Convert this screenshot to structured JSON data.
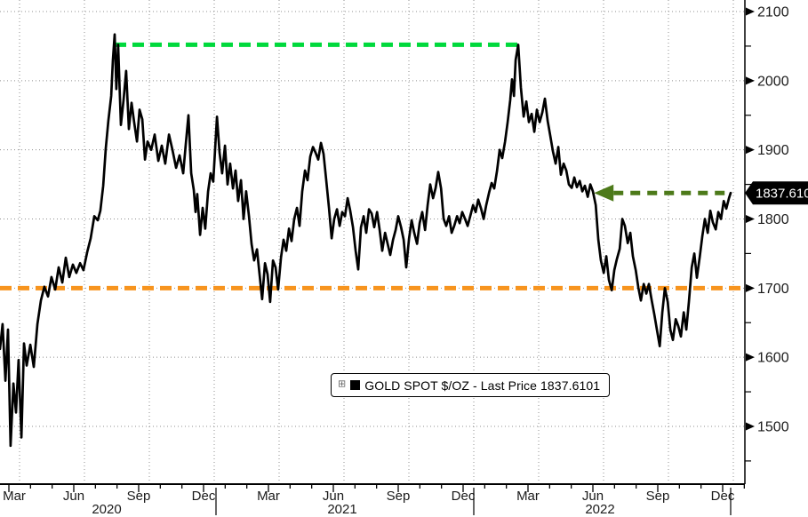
{
  "chart_data": {
    "type": "line",
    "title": "GOLD SPOT $/OZ",
    "time_range": "Feb 2020 - Dec 2022",
    "legend": {
      "expand_icon": "plus-box-icon",
      "expand_glyph": "⊞",
      "marker_color": "#000000",
      "label": "GOLD SPOT $/OZ - Last Price 1837.6101"
    },
    "last_price": 1837.6101,
    "last_price_label": "1837.6101",
    "x_axis": {
      "quarter_tick_labels": [
        "Mar",
        "Jun",
        "Sep",
        "Dec",
        "Mar",
        "Jun",
        "Sep",
        "Dec",
        "Mar",
        "Jun",
        "Sep",
        "Dec"
      ],
      "year_labels": [
        "2020",
        "2021",
        "2022"
      ],
      "month_index_start": 1.59,
      "month_index_end": 35.37
    },
    "y_axis": {
      "side": "right",
      "major_ticks": [
        1500,
        1600,
        1700,
        1800,
        1900,
        2000,
        2100
      ],
      "minor_ticks": [
        1450,
        1550,
        1650,
        1750,
        1850,
        1950,
        2050
      ],
      "visible_value_range": [
        1416,
        2117
      ]
    },
    "grid": true,
    "annotations": [
      {
        "id": "record-high-resistance",
        "type": "hsegment",
        "value": 2052,
        "m_from": 6.89,
        "m_to": 25.65,
        "color": "#00D93C",
        "dash": true
      },
      {
        "id": "support-1700",
        "type": "hline",
        "value": 1700,
        "color": "#F7941E",
        "dash": true
      },
      {
        "id": "last-price-arrow",
        "type": "arrow-left",
        "value": 1837.61,
        "m_tip": 29.05,
        "m_from": 35.38,
        "color": "#4D7A1A",
        "dash": true
      }
    ],
    "series": [
      {
        "name": "GOLD SPOT $/OZ - Last Price",
        "color": "#000000",
        "points": [
          [
            1.59,
            1612
          ],
          [
            1.71,
            1648
          ],
          [
            1.84,
            1566
          ],
          [
            1.96,
            1640
          ],
          [
            2.08,
            1472
          ],
          [
            2.21,
            1562
          ],
          [
            2.33,
            1520
          ],
          [
            2.45,
            1596
          ],
          [
            2.58,
            1484
          ],
          [
            2.7,
            1620
          ],
          [
            2.82,
            1588
          ],
          [
            2.99,
            1618
          ],
          [
            3.15,
            1586
          ],
          [
            3.32,
            1648
          ],
          [
            3.48,
            1682
          ],
          [
            3.64,
            1702
          ],
          [
            3.81,
            1688
          ],
          [
            3.97,
            1716
          ],
          [
            4.14,
            1698
          ],
          [
            4.3,
            1730
          ],
          [
            4.47,
            1708
          ],
          [
            4.63,
            1744
          ],
          [
            4.79,
            1716
          ],
          [
            4.96,
            1734
          ],
          [
            5.12,
            1722
          ],
          [
            5.29,
            1736
          ],
          [
            5.45,
            1726
          ],
          [
            5.62,
            1752
          ],
          [
            5.78,
            1772
          ],
          [
            5.95,
            1804
          ],
          [
            6.11,
            1798
          ],
          [
            6.23,
            1812
          ],
          [
            6.36,
            1848
          ],
          [
            6.48,
            1902
          ],
          [
            6.6,
            1942
          ],
          [
            6.73,
            1978
          ],
          [
            6.81,
            2030
          ],
          [
            6.89,
            2067
          ],
          [
            6.97,
            1988
          ],
          [
            7.05,
            2052
          ],
          [
            7.18,
            1936
          ],
          [
            7.3,
            1972
          ],
          [
            7.42,
            2014
          ],
          [
            7.55,
            1930
          ],
          [
            7.67,
            1968
          ],
          [
            7.79,
            1940
          ],
          [
            7.92,
            1912
          ],
          [
            8.04,
            1958
          ],
          [
            8.17,
            1944
          ],
          [
            8.29,
            1886
          ],
          [
            8.41,
            1912
          ],
          [
            8.58,
            1900
          ],
          [
            8.74,
            1922
          ],
          [
            8.91,
            1884
          ],
          [
            9.07,
            1906
          ],
          [
            9.23,
            1880
          ],
          [
            9.4,
            1922
          ],
          [
            9.56,
            1900
          ],
          [
            9.73,
            1874
          ],
          [
            9.89,
            1892
          ],
          [
            10.06,
            1866
          ],
          [
            10.18,
            1908
          ],
          [
            10.3,
            1950
          ],
          [
            10.43,
            1866
          ],
          [
            10.55,
            1842
          ],
          [
            10.63,
            1810
          ],
          [
            10.71,
            1836
          ],
          [
            10.84,
            1777
          ],
          [
            10.96,
            1816
          ],
          [
            11.08,
            1786
          ],
          [
            11.21,
            1840
          ],
          [
            11.33,
            1866
          ],
          [
            11.45,
            1854
          ],
          [
            11.62,
            1948
          ],
          [
            11.74,
            1896
          ],
          [
            11.86,
            1866
          ],
          [
            11.99,
            1906
          ],
          [
            12.11,
            1850
          ],
          [
            12.23,
            1880
          ],
          [
            12.36,
            1844
          ],
          [
            12.48,
            1870
          ],
          [
            12.6,
            1826
          ],
          [
            12.73,
            1856
          ],
          [
            12.85,
            1800
          ],
          [
            12.97,
            1840
          ],
          [
            13.1,
            1804
          ],
          [
            13.22,
            1764
          ],
          [
            13.34,
            1740
          ],
          [
            13.47,
            1756
          ],
          [
            13.59,
            1720
          ],
          [
            13.71,
            1684
          ],
          [
            13.84,
            1736
          ],
          [
            13.96,
            1720
          ],
          [
            14.08,
            1680
          ],
          [
            14.21,
            1740
          ],
          [
            14.33,
            1730
          ],
          [
            14.45,
            1698
          ],
          [
            14.58,
            1744
          ],
          [
            14.7,
            1770
          ],
          [
            14.82,
            1754
          ],
          [
            14.95,
            1786
          ],
          [
            15.07,
            1768
          ],
          [
            15.19,
            1800
          ],
          [
            15.32,
            1816
          ],
          [
            15.44,
            1790
          ],
          [
            15.56,
            1840
          ],
          [
            15.69,
            1870
          ],
          [
            15.81,
            1856
          ],
          [
            15.93,
            1890
          ],
          [
            16.06,
            1904
          ],
          [
            16.18,
            1896
          ],
          [
            16.3,
            1886
          ],
          [
            16.43,
            1910
          ],
          [
            16.55,
            1894
          ],
          [
            16.67,
            1856
          ],
          [
            16.8,
            1816
          ],
          [
            16.92,
            1772
          ],
          [
            17.04,
            1800
          ],
          [
            17.17,
            1814
          ],
          [
            17.29,
            1790
          ],
          [
            17.41,
            1810
          ],
          [
            17.54,
            1804
          ],
          [
            17.66,
            1830
          ],
          [
            17.78,
            1812
          ],
          [
            17.91,
            1788
          ],
          [
            18.03,
            1754
          ],
          [
            18.15,
            1727
          ],
          [
            18.28,
            1788
          ],
          [
            18.4,
            1804
          ],
          [
            18.52,
            1780
          ],
          [
            18.65,
            1814
          ],
          [
            18.77,
            1808
          ],
          [
            18.89,
            1788
          ],
          [
            19.02,
            1810
          ],
          [
            19.14,
            1784
          ],
          [
            19.26,
            1754
          ],
          [
            19.39,
            1780
          ],
          [
            19.51,
            1764
          ],
          [
            19.63,
            1748
          ],
          [
            19.76,
            1770
          ],
          [
            19.88,
            1784
          ],
          [
            20.0,
            1804
          ],
          [
            20.13,
            1788
          ],
          [
            20.25,
            1770
          ],
          [
            20.37,
            1730
          ],
          [
            20.5,
            1772
          ],
          [
            20.62,
            1798
          ],
          [
            20.74,
            1780
          ],
          [
            20.87,
            1764
          ],
          [
            20.99,
            1794
          ],
          [
            21.11,
            1810
          ],
          [
            21.24,
            1784
          ],
          [
            21.36,
            1820
          ],
          [
            21.48,
            1850
          ],
          [
            21.61,
            1830
          ],
          [
            21.73,
            1845
          ],
          [
            21.85,
            1868
          ],
          [
            21.98,
            1844
          ],
          [
            22.1,
            1800
          ],
          [
            22.22,
            1790
          ],
          [
            22.35,
            1804
          ],
          [
            22.47,
            1780
          ],
          [
            22.59,
            1790
          ],
          [
            22.72,
            1804
          ],
          [
            22.84,
            1794
          ],
          [
            22.96,
            1810
          ],
          [
            23.09,
            1800
          ],
          [
            23.21,
            1790
          ],
          [
            23.33,
            1804
          ],
          [
            23.46,
            1820
          ],
          [
            23.58,
            1810
          ],
          [
            23.7,
            1828
          ],
          [
            23.83,
            1815
          ],
          [
            23.95,
            1800
          ],
          [
            24.07,
            1820
          ],
          [
            24.2,
            1838
          ],
          [
            24.32,
            1852
          ],
          [
            24.44,
            1844
          ],
          [
            24.57,
            1870
          ],
          [
            24.69,
            1900
          ],
          [
            24.81,
            1888
          ],
          [
            24.94,
            1912
          ],
          [
            25.06,
            1940
          ],
          [
            25.18,
            1972
          ],
          [
            25.26,
            2002
          ],
          [
            25.35,
            1978
          ],
          [
            25.43,
            2030
          ],
          [
            25.55,
            2052
          ],
          [
            25.67,
            1990
          ],
          [
            25.8,
            1948
          ],
          [
            25.92,
            1970
          ],
          [
            26.04,
            1940
          ],
          [
            26.17,
            1952
          ],
          [
            26.29,
            1926
          ],
          [
            26.41,
            1958
          ],
          [
            26.54,
            1940
          ],
          [
            26.66,
            1954
          ],
          [
            26.78,
            1974
          ],
          [
            26.91,
            1942
          ],
          [
            27.03,
            1920
          ],
          [
            27.15,
            1898
          ],
          [
            27.28,
            1880
          ],
          [
            27.4,
            1904
          ],
          [
            27.52,
            1864
          ],
          [
            27.65,
            1880
          ],
          [
            27.77,
            1870
          ],
          [
            27.89,
            1850
          ],
          [
            28.02,
            1845
          ],
          [
            28.14,
            1860
          ],
          [
            28.26,
            1846
          ],
          [
            28.39,
            1855
          ],
          [
            28.51,
            1840
          ],
          [
            28.63,
            1848
          ],
          [
            28.76,
            1832
          ],
          [
            28.88,
            1850
          ],
          [
            29.0,
            1840
          ],
          [
            29.13,
            1820
          ],
          [
            29.25,
            1770
          ],
          [
            29.37,
            1740
          ],
          [
            29.5,
            1722
          ],
          [
            29.62,
            1746
          ],
          [
            29.74,
            1712
          ],
          [
            29.87,
            1697
          ],
          [
            29.99,
            1726
          ],
          [
            30.11,
            1742
          ],
          [
            30.24,
            1757
          ],
          [
            30.36,
            1800
          ],
          [
            30.48,
            1790
          ],
          [
            30.61,
            1765
          ],
          [
            30.73,
            1780
          ],
          [
            30.85,
            1746
          ],
          [
            30.98,
            1726
          ],
          [
            31.1,
            1701
          ],
          [
            31.22,
            1682
          ],
          [
            31.35,
            1706
          ],
          [
            31.47,
            1692
          ],
          [
            31.59,
            1706
          ],
          [
            31.72,
            1682
          ],
          [
            31.84,
            1662
          ],
          [
            31.96,
            1640
          ],
          [
            32.09,
            1616
          ],
          [
            32.21,
            1665
          ],
          [
            32.33,
            1700
          ],
          [
            32.46,
            1680
          ],
          [
            32.58,
            1640
          ],
          [
            32.7,
            1625
          ],
          [
            32.83,
            1655
          ],
          [
            32.95,
            1645
          ],
          [
            33.07,
            1630
          ],
          [
            33.2,
            1665
          ],
          [
            33.32,
            1640
          ],
          [
            33.44,
            1680
          ],
          [
            33.57,
            1730
          ],
          [
            33.69,
            1750
          ],
          [
            33.81,
            1715
          ],
          [
            33.94,
            1745
          ],
          [
            34.06,
            1775
          ],
          [
            34.18,
            1800
          ],
          [
            34.31,
            1780
          ],
          [
            34.43,
            1812
          ],
          [
            34.55,
            1795
          ],
          [
            34.68,
            1785
          ],
          [
            34.8,
            1810
          ],
          [
            34.92,
            1800
          ],
          [
            35.05,
            1826
          ],
          [
            35.17,
            1815
          ],
          [
            35.29,
            1830
          ],
          [
            35.37,
            1837.61
          ]
        ]
      }
    ],
    "colors": {
      "line": "#000000",
      "resistance_green": "#00D93C",
      "support_orange": "#F7941E",
      "arrow_olive": "#4D7A1A",
      "grid": "#8f8f8f",
      "axis_text": "#1a1a1a",
      "price_tag_bg": "#000000",
      "price_tag_text": "#ffffff"
    }
  }
}
